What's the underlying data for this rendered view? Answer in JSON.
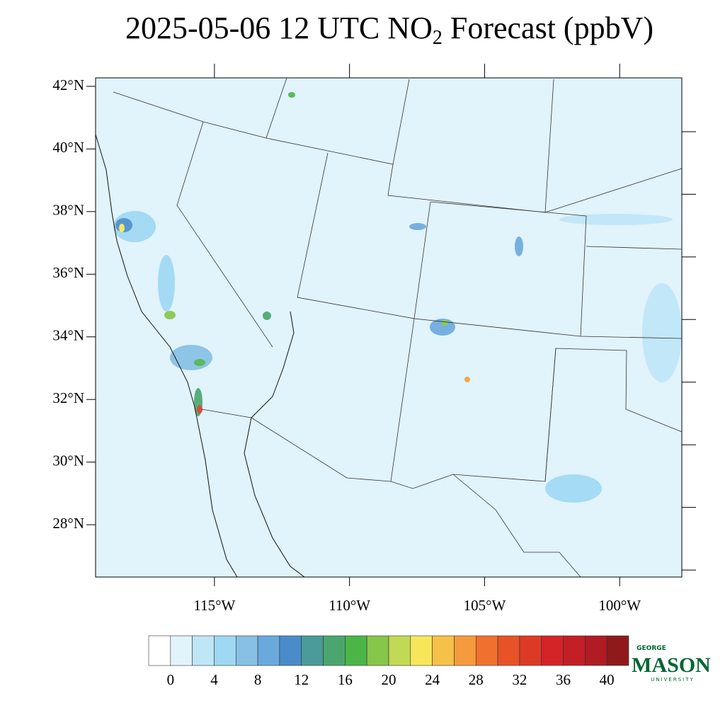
{
  "title": {
    "before": "2025-05-06 12 UTC NO",
    "subscript": "2",
    "after": " Forecast (ppbV)"
  },
  "map": {
    "ylim": [
      26.33,
      42.27
    ],
    "yticks": [
      {
        "value": 28,
        "label": "28°N"
      },
      {
        "value": 30,
        "label": "30°N"
      },
      {
        "value": 32,
        "label": "32°N"
      },
      {
        "value": 34,
        "label": "34°N"
      },
      {
        "value": 36,
        "label": "36°N"
      },
      {
        "value": 38,
        "label": "38°N"
      },
      {
        "value": 40,
        "label": "40°N"
      },
      {
        "value": 42,
        "label": "42°N"
      }
    ],
    "xlim": [
      -119.4,
      -97.7
    ],
    "xticks": [
      {
        "value": -115,
        "label": "115°W"
      },
      {
        "value": -110,
        "label": "110°W"
      },
      {
        "value": -105,
        "label": "105°W"
      },
      {
        "value": -100,
        "label": "100°W"
      }
    ]
  },
  "colorbar": {
    "colors": [
      "#ffffff",
      "#e1f3fb",
      "#bfe6f7",
      "#9ed8f3",
      "#86c0e4",
      "#6aa9dc",
      "#4a8cc9",
      "#4a9b9a",
      "#4aa66e",
      "#4bb548",
      "#86c64b",
      "#c2d955",
      "#f8e65a",
      "#f6c148",
      "#f59b3d",
      "#f0712f",
      "#e85227",
      "#dd3a26",
      "#d42428",
      "#c41e27",
      "#b01b24",
      "#8f1a1c"
    ],
    "ticks": [
      0,
      4,
      8,
      12,
      16,
      20,
      24,
      28,
      32,
      36,
      40
    ]
  },
  "logo": {
    "top": "GEORGE",
    "main": "MASON",
    "bottom": "UNIVERSITY"
  }
}
